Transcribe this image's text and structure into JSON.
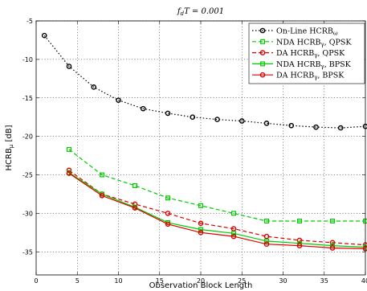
{
  "chart_data": {
    "type": "line",
    "title": "f_dT = 0.001",
    "title_parts": {
      "base": "f",
      "sub": "d",
      "rest": "T = 0.001"
    },
    "xlabel": "Observation Block Length",
    "ylabel": "HCRB_μ [dB]",
    "ylabel_parts": {
      "base": "HCRB",
      "sub": "μ",
      "rest": " [dB]"
    },
    "xlim": [
      0,
      40
    ],
    "ylim": [
      -38,
      -5
    ],
    "xticks": [
      0,
      5,
      10,
      15,
      20,
      25,
      30,
      35,
      40
    ],
    "yticks": [
      -35,
      -30,
      -25,
      -20,
      -15,
      -10,
      -5
    ],
    "grid": true,
    "legend_position": "top-right",
    "series": [
      {
        "name": "On-Line HCRB_ω",
        "legend_parts": {
          "base": "On-Line HCRB",
          "sub": "ω",
          "rest": ""
        },
        "color": "#000000",
        "dash": "1.5,2.5",
        "marker": "circle",
        "x": [
          1,
          4,
          7,
          10,
          13,
          16,
          19,
          22,
          25,
          28,
          31,
          34,
          37,
          40
        ],
        "y": [
          -6.9,
          -10.9,
          -13.6,
          -15.3,
          -16.4,
          -17.0,
          -17.5,
          -17.8,
          -18.0,
          -18.3,
          -18.6,
          -18.8,
          -18.9,
          -18.7
        ]
      },
      {
        "name": "NDA HCRB_γ, QPSK",
        "legend_parts": {
          "base": "NDA HCRB",
          "sub": "γ",
          "rest": ", QPSK"
        },
        "color": "#00cc00",
        "dash": "5,3",
        "marker": "square",
        "x": [
          4,
          8,
          12,
          16,
          20,
          24,
          28,
          32,
          36,
          40
        ],
        "y": [
          -21.7,
          -25.0,
          -26.4,
          -28.0,
          -29.0,
          -30.0,
          -31.0,
          -31.0,
          -31.0,
          -31.0
        ]
      },
      {
        "name": "DA HCRB_γ, QPSK",
        "legend_parts": {
          "base": "DA HCRB",
          "sub": "γ",
          "rest": ", QPSK"
        },
        "color": "#dd0000",
        "dash": "5,3",
        "marker": "circle",
        "x": [
          4,
          8,
          12,
          16,
          20,
          24,
          28,
          32,
          36,
          40
        ],
        "y": [
          -24.4,
          -27.5,
          -28.8,
          -30.0,
          -31.3,
          -32.0,
          -33.0,
          -33.5,
          -33.8,
          -34.1
        ]
      },
      {
        "name": "NDA HCRB_γ, BPSK",
        "legend_parts": {
          "base": "NDA HCRB",
          "sub": "γ",
          "rest": ", BPSK"
        },
        "color": "#00cc00",
        "dash": "",
        "marker": "square",
        "x": [
          4,
          8,
          12,
          16,
          20,
          24,
          28,
          32,
          36,
          40
        ],
        "y": [
          -24.7,
          -27.5,
          -29.2,
          -31.2,
          -32.1,
          -32.6,
          -33.6,
          -33.9,
          -34.2,
          -34.4
        ]
      },
      {
        "name": "DA HCRB_γ, BPSK",
        "legend_parts": {
          "base": "DA HCRB",
          "sub": "γ",
          "rest": ", BPSK"
        },
        "color": "#dd0000",
        "dash": "",
        "marker": "circle",
        "x": [
          4,
          8,
          12,
          16,
          20,
          24,
          28,
          32,
          36,
          40
        ],
        "y": [
          -24.8,
          -27.7,
          -29.3,
          -31.4,
          -32.5,
          -33.0,
          -34.0,
          -34.2,
          -34.5,
          -34.6
        ]
      }
    ]
  }
}
